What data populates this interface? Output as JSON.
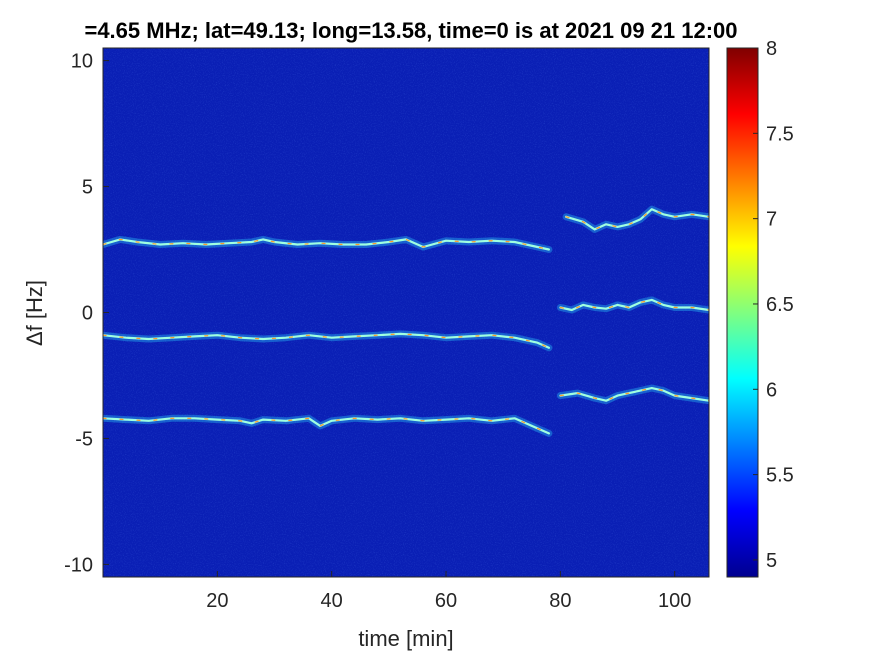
{
  "chart_data": {
    "type": "heatmap",
    "title": "=4.65 MHz;  lat=49.13; long=13.58, time=0 is at 2021 09 21 12:00",
    "xlabel": "time [min]",
    "ylabel": "Δf [Hz]",
    "xlim": [
      0,
      106
    ],
    "ylim": [
      -10.5,
      10.5
    ],
    "xticks": [
      20,
      40,
      60,
      80,
      100
    ],
    "yticks": [
      10,
      5,
      0,
      -5,
      -10
    ],
    "colorbar": {
      "colormap": "jet",
      "range": [
        4.9,
        8
      ],
      "ticks": [
        8,
        7.5,
        7,
        6.5,
        6,
        5.5,
        5
      ]
    },
    "background_color": "#0a1fb5",
    "traces": [
      {
        "name": "",
        "segment": "early",
        "points": [
          [
            0,
            2.7
          ],
          [
            3,
            2.9
          ],
          [
            6,
            2.8
          ],
          [
            10,
            2.7
          ],
          [
            14,
            2.75
          ],
          [
            18,
            2.7
          ],
          [
            22,
            2.75
          ],
          [
            26,
            2.8
          ],
          [
            28,
            2.9
          ],
          [
            30,
            2.8
          ],
          [
            34,
            2.7
          ],
          [
            38,
            2.75
          ],
          [
            42,
            2.7
          ],
          [
            46,
            2.7
          ],
          [
            50,
            2.8
          ],
          [
            53,
            2.9
          ],
          [
            56,
            2.6
          ],
          [
            60,
            2.85
          ],
          [
            64,
            2.8
          ],
          [
            68,
            2.85
          ],
          [
            72,
            2.8
          ],
          [
            76,
            2.6
          ],
          [
            78,
            2.5
          ]
        ]
      },
      {
        "name": "",
        "segment": "early",
        "points": [
          [
            0,
            -0.9
          ],
          [
            4,
            -1.0
          ],
          [
            8,
            -1.05
          ],
          [
            12,
            -1.0
          ],
          [
            16,
            -0.95
          ],
          [
            20,
            -0.9
          ],
          [
            24,
            -1.0
          ],
          [
            28,
            -1.05
          ],
          [
            32,
            -1.0
          ],
          [
            36,
            -0.9
          ],
          [
            40,
            -1.0
          ],
          [
            44,
            -0.95
          ],
          [
            48,
            -0.9
          ],
          [
            52,
            -0.85
          ],
          [
            56,
            -0.9
          ],
          [
            60,
            -1.0
          ],
          [
            64,
            -0.95
          ],
          [
            68,
            -0.9
          ],
          [
            72,
            -1.0
          ],
          [
            76,
            -1.2
          ],
          [
            78,
            -1.4
          ]
        ]
      },
      {
        "name": "",
        "segment": "early",
        "points": [
          [
            0,
            -4.2
          ],
          [
            4,
            -4.25
          ],
          [
            8,
            -4.3
          ],
          [
            12,
            -4.2
          ],
          [
            16,
            -4.2
          ],
          [
            20,
            -4.25
          ],
          [
            24,
            -4.3
          ],
          [
            26,
            -4.4
          ],
          [
            28,
            -4.25
          ],
          [
            32,
            -4.3
          ],
          [
            36,
            -4.2
          ],
          [
            38,
            -4.5
          ],
          [
            40,
            -4.3
          ],
          [
            44,
            -4.2
          ],
          [
            48,
            -4.25
          ],
          [
            52,
            -4.2
          ],
          [
            56,
            -4.3
          ],
          [
            60,
            -4.25
          ],
          [
            64,
            -4.2
          ],
          [
            68,
            -4.3
          ],
          [
            72,
            -4.2
          ],
          [
            75,
            -4.5
          ],
          [
            78,
            -4.8
          ]
        ]
      },
      {
        "name": "",
        "segment": "late",
        "points": [
          [
            81,
            3.8
          ],
          [
            84,
            3.6
          ],
          [
            86,
            3.3
          ],
          [
            88,
            3.5
          ],
          [
            90,
            3.4
          ],
          [
            92,
            3.5
          ],
          [
            94,
            3.7
          ],
          [
            96,
            4.1
          ],
          [
            98,
            3.9
          ],
          [
            100,
            3.8
          ],
          [
            103,
            3.9
          ],
          [
            106,
            3.8
          ]
        ]
      },
      {
        "name": "",
        "segment": "late",
        "points": [
          [
            80,
            0.2
          ],
          [
            82,
            0.1
          ],
          [
            84,
            0.3
          ],
          [
            86,
            0.2
          ],
          [
            88,
            0.15
          ],
          [
            90,
            0.3
          ],
          [
            92,
            0.2
          ],
          [
            94,
            0.4
          ],
          [
            96,
            0.5
          ],
          [
            98,
            0.3
          ],
          [
            100,
            0.2
          ],
          [
            103,
            0.2
          ],
          [
            106,
            0.1
          ]
        ]
      },
      {
        "name": "",
        "segment": "late",
        "points": [
          [
            80,
            -3.3
          ],
          [
            83,
            -3.2
          ],
          [
            86,
            -3.4
          ],
          [
            88,
            -3.5
          ],
          [
            90,
            -3.3
          ],
          [
            92,
            -3.2
          ],
          [
            94,
            -3.1
          ],
          [
            96,
            -3.0
          ],
          [
            98,
            -3.1
          ],
          [
            100,
            -3.3
          ],
          [
            103,
            -3.4
          ],
          [
            106,
            -3.5
          ]
        ]
      }
    ]
  }
}
